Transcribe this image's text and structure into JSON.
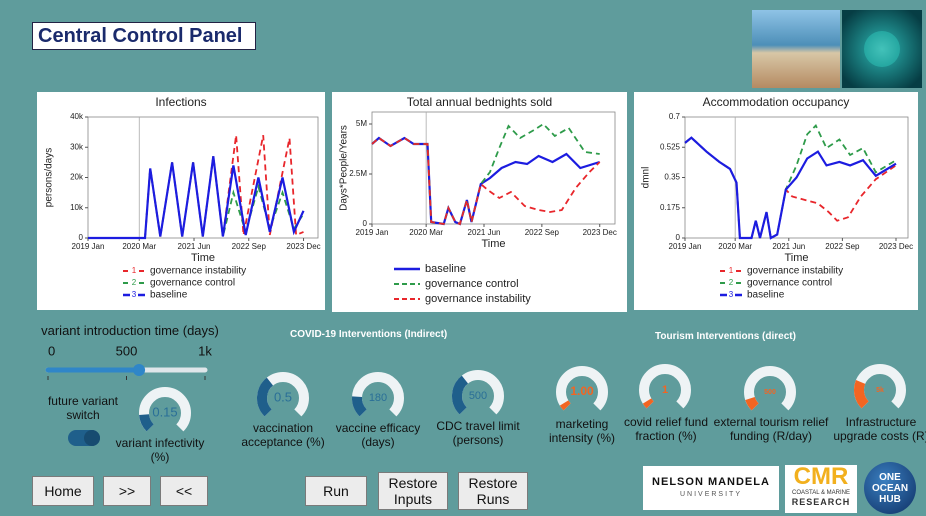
{
  "header": {
    "title": "Central Control Panel"
  },
  "charts": [
    {
      "type": "line",
      "title": "Infections",
      "y_label": "persons/days",
      "x_label": "Time",
      "xlim": [
        2019,
        2024.25
      ],
      "xticks": [
        {
          "value": 2019,
          "label": "2019 Jan"
        },
        {
          "value": 2020.17,
          "label": "2020 Mar"
        },
        {
          "value": 2021.42,
          "label": "2021 Jun"
        },
        {
          "value": 2022.67,
          "label": "2022 Sep"
        },
        {
          "value": 2023.92,
          "label": "2023 Dec"
        }
      ],
      "ylim": [
        0,
        40000
      ],
      "yticks": [
        0,
        {
          "value": 10000,
          "label": "10k"
        },
        {
          "value": 20000,
          "label": "20k"
        },
        {
          "value": 30000,
          "label": "30k"
        },
        {
          "value": 40000,
          "label": "40k"
        }
      ],
      "series": [
        {
          "name": "governance instability",
          "marker": "1",
          "color": "#e8262b",
          "style": "dashed",
          "x": [
            2019,
            2020.3,
            2020.42,
            2020.65,
            2020.92,
            2021.15,
            2021.4,
            2021.62,
            2021.86,
            2022.08,
            2022.38,
            2022.55,
            2023.0,
            2023.15,
            2023.6,
            2023.75,
            2023.92
          ],
          "values": [
            0,
            0,
            23000,
            500,
            25000,
            500,
            25000,
            500,
            27000,
            500,
            34000,
            1000,
            34000,
            1000,
            33000,
            1000,
            2000
          ]
        },
        {
          "name": "governance control",
          "marker": "2",
          "color": "#2e9b4a",
          "style": "dashed",
          "x": [
            2019,
            2020.3,
            2020.42,
            2020.65,
            2020.92,
            2021.15,
            2021.4,
            2021.62,
            2021.86,
            2022.08,
            2022.32,
            2022.6,
            2022.89,
            2023.15,
            2023.44,
            2023.7,
            2023.92
          ],
          "values": [
            0,
            0,
            23000,
            500,
            25000,
            500,
            25000,
            500,
            27000,
            500,
            15000,
            2000,
            17000,
            3000,
            15000,
            3000,
            8000
          ]
        },
        {
          "name": "baseline",
          "marker": "3",
          "color": "#1c1ce0",
          "style": "solid",
          "x": [
            2019,
            2020.3,
            2020.42,
            2020.65,
            2020.92,
            2021.15,
            2021.4,
            2021.62,
            2021.86,
            2022.08,
            2022.32,
            2022.6,
            2022.89,
            2023.15,
            2023.44,
            2023.7,
            2023.92
          ],
          "values": [
            0,
            0,
            23000,
            500,
            25000,
            500,
            25000,
            500,
            27000,
            500,
            24000,
            1000,
            20000,
            2000,
            20000,
            2000,
            9000
          ]
        }
      ]
    },
    {
      "type": "line",
      "title": "Total annual bednights sold",
      "y_label": "Days*People/Years",
      "x_label": "Time",
      "xlim": [
        2019,
        2024.25
      ],
      "xticks": [
        {
          "value": 2019,
          "label": "2019 Jan"
        },
        {
          "value": 2020.17,
          "label": "2020 Mar"
        },
        {
          "value": 2021.42,
          "label": "2021 Jun"
        },
        {
          "value": 2022.67,
          "label": "2022 Sep"
        },
        {
          "value": 2023.92,
          "label": "2023 Dec"
        }
      ],
      "ylim": [
        0,
        5600000
      ],
      "yticks": [
        0,
        {
          "value": 2500000,
          "label": "2.5M"
        },
        {
          "value": 5000000,
          "label": "5M"
        }
      ],
      "series": [
        {
          "name": "baseline",
          "color": "#1c1ce0",
          "style": "solid",
          "x": [
            2019,
            2019.15,
            2019.4,
            2019.7,
            2019.9,
            2020.2,
            2020.28,
            2020.55,
            2020.65,
            2020.8,
            2020.9,
            2021.05,
            2021.15,
            2021.35,
            2021.55,
            2021.8,
            2022.1,
            2022.35,
            2022.6,
            2022.9,
            2023.2,
            2023.5,
            2023.92
          ],
          "values": [
            4000000,
            4300000,
            3900000,
            4300000,
            4000000,
            4000000,
            100000,
            0,
            800000,
            100000,
            0,
            1200000,
            100000,
            2000000,
            2300000,
            2800000,
            3100000,
            3000000,
            3400000,
            3100000,
            3500000,
            2800000,
            3100000
          ]
        },
        {
          "name": "governance control",
          "color": "#2e9b4a",
          "style": "dashed",
          "x": [
            2019,
            2019.15,
            2019.4,
            2019.7,
            2019.9,
            2020.2,
            2020.28,
            2020.55,
            2020.65,
            2020.8,
            2020.9,
            2021.05,
            2021.15,
            2021.35,
            2021.55,
            2021.75,
            2021.95,
            2022.2,
            2022.5,
            2022.7,
            2022.95,
            2023.25,
            2023.6,
            2023.92
          ],
          "values": [
            4000000,
            4300000,
            3900000,
            4300000,
            4000000,
            4000000,
            100000,
            0,
            800000,
            100000,
            0,
            1200000,
            100000,
            2000000,
            2600000,
            3800000,
            4900000,
            4300000,
            4700000,
            5000000,
            4400000,
            4800000,
            3600000,
            3500000
          ]
        },
        {
          "name": "governance instability",
          "color": "#e8262b",
          "style": "dashed",
          "x": [
            2019,
            2019.15,
            2019.4,
            2019.7,
            2019.9,
            2020.2,
            2020.28,
            2020.55,
            2020.65,
            2020.8,
            2020.9,
            2021.05,
            2021.15,
            2021.35,
            2021.5,
            2021.75,
            2022.0,
            2022.3,
            2022.6,
            2022.85,
            2023.1,
            2023.4,
            2023.7,
            2023.92
          ],
          "values": [
            4000000,
            4300000,
            3900000,
            4300000,
            4000000,
            4000000,
            100000,
            0,
            800000,
            100000,
            0,
            1200000,
            100000,
            2000000,
            1700000,
            1300000,
            1600000,
            900000,
            700000,
            600000,
            700000,
            1800000,
            2600000,
            3100000
          ]
        }
      ]
    },
    {
      "type": "line",
      "title": "Accommodation occupancy",
      "y_label": "dmnl",
      "x_label": "Time",
      "xlim": [
        2019,
        2024.2
      ],
      "xticks": [
        {
          "value": 2019,
          "label": "2019 Jan"
        },
        {
          "value": 2020.17,
          "label": "2020 Mar"
        },
        {
          "value": 2021.42,
          "label": "2021 Jun"
        },
        {
          "value": 2022.67,
          "label": "2022 Sep"
        },
        {
          "value": 2023.92,
          "label": "2023 Dec"
        }
      ],
      "ylim": [
        0,
        0.7
      ],
      "yticks": [
        0,
        0.175,
        0.35,
        0.525,
        0.7
      ],
      "series": [
        {
          "name": "governance instability",
          "marker": "1",
          "color": "#e8262b",
          "style": "dashed",
          "x": [
            2019,
            2019.15,
            2019.5,
            2019.8,
            2020.05,
            2020.2,
            2020.28,
            2020.55,
            2020.65,
            2020.75,
            2020.9,
            2021.0,
            2021.15,
            2021.35,
            2021.5,
            2021.8,
            2022.1,
            2022.35,
            2022.55,
            2022.8,
            2023.1,
            2023.45,
            2023.92
          ],
          "values": [
            0.55,
            0.58,
            0.5,
            0.44,
            0.4,
            0.32,
            0.0,
            0.0,
            0.1,
            0.0,
            0.15,
            0.0,
            0.02,
            0.28,
            0.24,
            0.22,
            0.2,
            0.15,
            0.1,
            0.12,
            0.24,
            0.34,
            0.42
          ]
        },
        {
          "name": "governance control",
          "marker": "2",
          "color": "#2e9b4a",
          "style": "dashed",
          "x": [
            2019,
            2019.15,
            2019.5,
            2019.8,
            2020.05,
            2020.2,
            2020.28,
            2020.55,
            2020.65,
            2020.75,
            2020.9,
            2021.0,
            2021.15,
            2021.35,
            2021.6,
            2021.85,
            2022.05,
            2022.3,
            2022.6,
            2022.85,
            2023.15,
            2023.45,
            2023.92
          ],
          "values": [
            0.55,
            0.58,
            0.5,
            0.44,
            0.4,
            0.32,
            0.0,
            0.0,
            0.1,
            0.0,
            0.15,
            0.0,
            0.02,
            0.28,
            0.42,
            0.6,
            0.65,
            0.52,
            0.57,
            0.48,
            0.52,
            0.38,
            0.45
          ]
        },
        {
          "name": "baseline",
          "marker": "3",
          "color": "#1c1ce0",
          "style": "solid",
          "x": [
            2019,
            2019.15,
            2019.5,
            2019.8,
            2020.05,
            2020.2,
            2020.28,
            2020.55,
            2020.65,
            2020.75,
            2020.9,
            2021.0,
            2021.15,
            2021.35,
            2021.6,
            2021.85,
            2022.1,
            2022.3,
            2022.6,
            2022.85,
            2023.15,
            2023.45,
            2023.92
          ],
          "values": [
            0.55,
            0.58,
            0.5,
            0.44,
            0.4,
            0.32,
            0.0,
            0.0,
            0.1,
            0.0,
            0.15,
            0.0,
            0.02,
            0.28,
            0.35,
            0.46,
            0.5,
            0.42,
            0.44,
            0.42,
            0.45,
            0.36,
            0.43
          ]
        }
      ]
    }
  ],
  "slider": {
    "label": "variant introduction time (days)",
    "range": [
      0,
      1000
    ],
    "ticks": [
      0,
      500,
      {
        "value": 1000,
        "label": "1k"
      }
    ],
    "value": 580
  },
  "switch": {
    "label": "future variant switch",
    "on": true
  },
  "sections": {
    "covid": "COVID-19 Interventions (Indirect)",
    "tourism": "Tourism Interventions (direct)"
  },
  "gauges": [
    {
      "label": "variant infectivity (%)",
      "value": 0.15,
      "range": [
        0,
        1
      ],
      "color": "#1f5f8b"
    },
    {
      "label": "vaccination acceptance (%)",
      "value": 0.5,
      "range": [
        0,
        1.4
      ],
      "color": "#1f5f8b"
    },
    {
      "label": "vaccine efficacy (days)",
      "value": 180,
      "range": [
        0,
        1000
      ],
      "color": "#1f5f8b"
    },
    {
      "label": "CDC travel limit (persons)",
      "value": 500,
      "range": [
        0,
        1400
      ],
      "color": "#1f5f8b"
    },
    {
      "label": "marketing intensity (%)",
      "value": 1,
      "value_label": "1.00",
      "range": [
        0,
        20
      ],
      "color": "#f26522"
    },
    {
      "label": "covid relief fund fraction (%)",
      "value": 1,
      "range": [
        0,
        20
      ],
      "color": "#f26522"
    },
    {
      "label": "external tourism relief funding (R/day)",
      "value": 500,
      "range": [
        0,
        5000
      ],
      "color": "#f26522"
    },
    {
      "label": "Infrastructure upgrade costs (R)",
      "value": 5000,
      "value_label": "5k",
      "range": [
        0,
        20000
      ],
      "color": "#f26522"
    }
  ],
  "buttons": [
    "Home",
    ">>",
    "<<",
    "Run",
    "Restore Inputs",
    "Restore Runs"
  ],
  "logos": {
    "nmu_name": "NELSON MANDELA",
    "nmu_sub": "UNIVERSITY",
    "cmr": "CMR",
    "cmr_line1": "COASTAL & MARINE",
    "cmr_line2": "RESEARCH",
    "ooh_1": "ONE",
    "ooh_2": "OCEAN",
    "ooh_3": "HUB"
  }
}
